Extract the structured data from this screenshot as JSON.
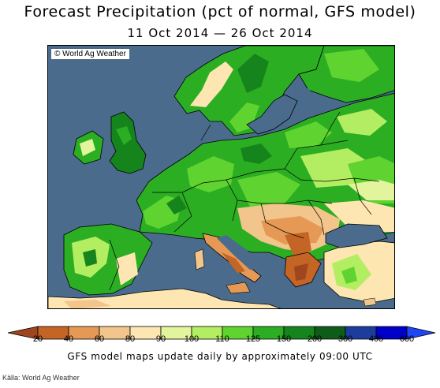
{
  "header": {
    "title": "Forecast Precipitation (pct of normal, GFS model)",
    "date_range": "11 Oct 2014 — 26 Oct 2014"
  },
  "map": {
    "copyright": "© World Ag Weather",
    "sea_color": "#4a6b8c"
  },
  "legend": {
    "labels": [
      "20",
      "40",
      "60",
      "80",
      "90",
      "100",
      "110",
      "125",
      "150",
      "200",
      "300",
      "400",
      "600"
    ],
    "colors": [
      "#a0461e",
      "#c46526",
      "#e59955",
      "#f2c58c",
      "#fde6b1",
      "#e2f59c",
      "#b3ee62",
      "#5fd32f",
      "#2cae23",
      "#16841c",
      "#0e5c19",
      "#1c3d9c",
      "#0000c8",
      "#1e46f5"
    ]
  },
  "footer": {
    "note": "GFS model maps update daily by approximately 09:00 UTC",
    "source": "Källa: World Ag Weather"
  }
}
